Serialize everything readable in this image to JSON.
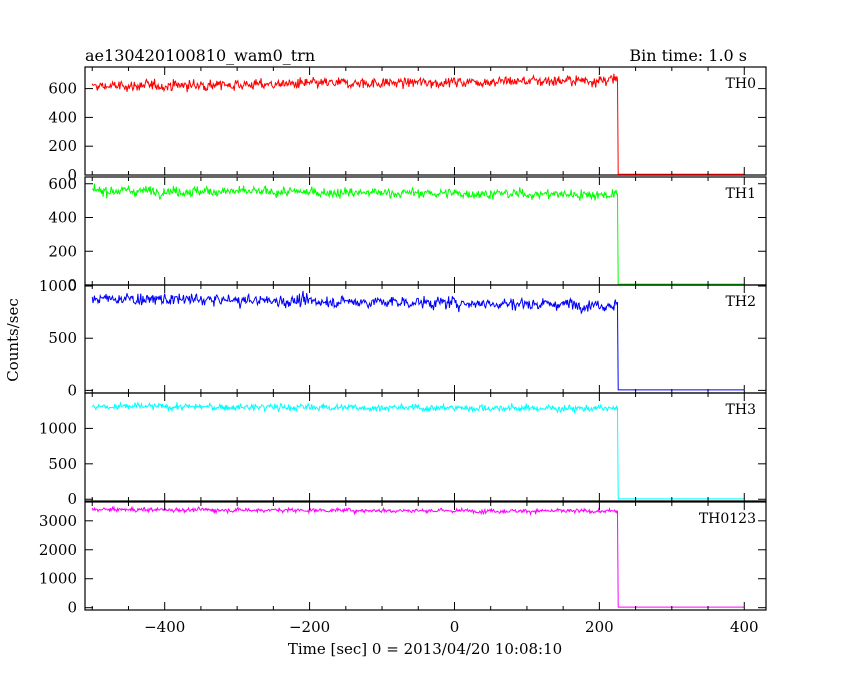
{
  "title_left": "ae130420100810_wam0_trn",
  "title_right": "Bin time: 1.0 s",
  "ylabel": "Counts/sec",
  "xlabel": "Time [sec] 0 = 2013/04/20 10:08:10",
  "chart_data": {
    "type": "line",
    "xlim": [
      -510,
      430
    ],
    "x_ticks": [
      -400,
      -200,
      0,
      200,
      400
    ],
    "x_tick_labels": [
      "−400",
      "−200",
      "0",
      "200",
      "400"
    ],
    "x_start": -500,
    "x_drop": 225,
    "x_end": 400,
    "bin_time_s": 1.0,
    "grid": false,
    "panels": [
      {
        "name": "TH0",
        "color": "#ff0000",
        "ylim": [
          0,
          750
        ],
        "yticks": [
          0,
          200,
          400,
          600
        ],
        "ytick_labels": [
          "0",
          "200",
          "400",
          "600"
        ],
        "level_start": 615,
        "level_end": 660,
        "noise": 45,
        "level_after": 5
      },
      {
        "name": "TH1",
        "color": "#00ff00",
        "ylim": [
          0,
          640
        ],
        "yticks": [
          0,
          200,
          400,
          600
        ],
        "ytick_labels": [
          "0",
          "200",
          "400",
          "600"
        ],
        "level_start": 560,
        "level_end": 535,
        "noise": 35,
        "level_after": 5
      },
      {
        "name": "TH2",
        "color": "#0000ff",
        "ylim": [
          -25,
          1010
        ],
        "yticks": [
          0,
          500,
          1000
        ],
        "ytick_labels": [
          "0",
          "500",
          "1000"
        ],
        "level_start": 880,
        "level_end": 820,
        "noise": 70,
        "level_after": 5
      },
      {
        "name": "TH3",
        "color": "#00ffff",
        "ylim": [
          -25,
          1500
        ],
        "yticks": [
          0,
          500,
          1000
        ],
        "ytick_labels": [
          "0",
          "500",
          "1000"
        ],
        "level_start": 1310,
        "level_end": 1280,
        "noise": 60,
        "level_after": 5
      },
      {
        "name": "TH0123",
        "color": "#ff00ff",
        "ylim": [
          -80,
          3650
        ],
        "yticks": [
          0,
          1000,
          2000,
          3000
        ],
        "ytick_labels": [
          "0",
          "1000",
          "2000",
          "3000"
        ],
        "level_start": 3390,
        "level_end": 3330,
        "noise": 90,
        "level_after": 20
      }
    ]
  }
}
